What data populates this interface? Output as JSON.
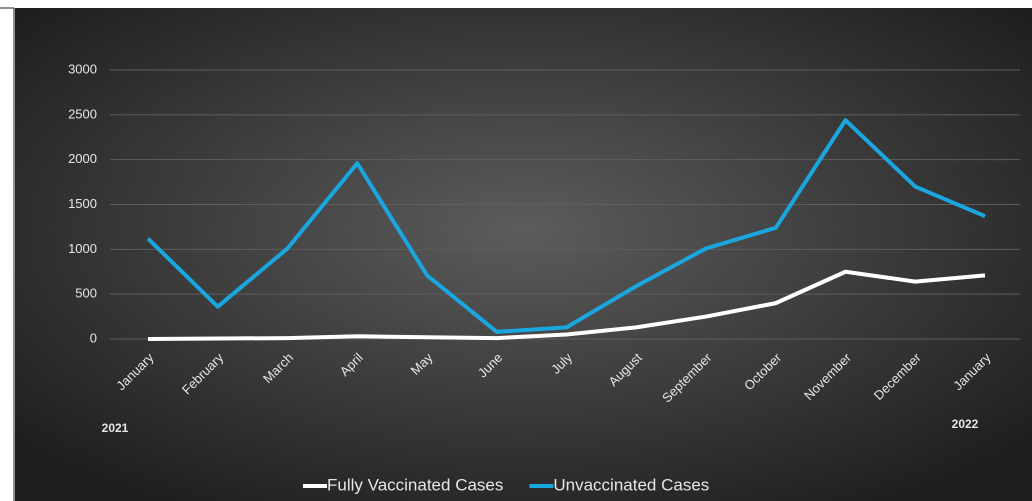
{
  "chart_data": {
    "type": "line",
    "categories": [
      "January",
      "February",
      "March",
      "April",
      "May",
      "June",
      "July",
      "August",
      "September",
      "October",
      "November",
      "December",
      "January"
    ],
    "annotations": [
      "2021",
      "2022"
    ],
    "series": [
      {
        "name": "Fully Vaccinated Cases",
        "color": "#ffffff",
        "values": [
          0,
          5,
          10,
          30,
          20,
          10,
          50,
          130,
          250,
          400,
          750,
          640,
          710
        ]
      },
      {
        "name": "Unvaccinated Cases",
        "color": "#1aa6df",
        "values": [
          1120,
          360,
          1010,
          1960,
          710,
          80,
          130,
          590,
          1010,
          1240,
          2440,
          1700,
          1370
        ]
      }
    ],
    "ylim": [
      0,
      3000
    ],
    "yticks": [
      0,
      500,
      1000,
      1500,
      2000,
      2500,
      3000
    ],
    "grid": true,
    "legend": "bottom"
  }
}
